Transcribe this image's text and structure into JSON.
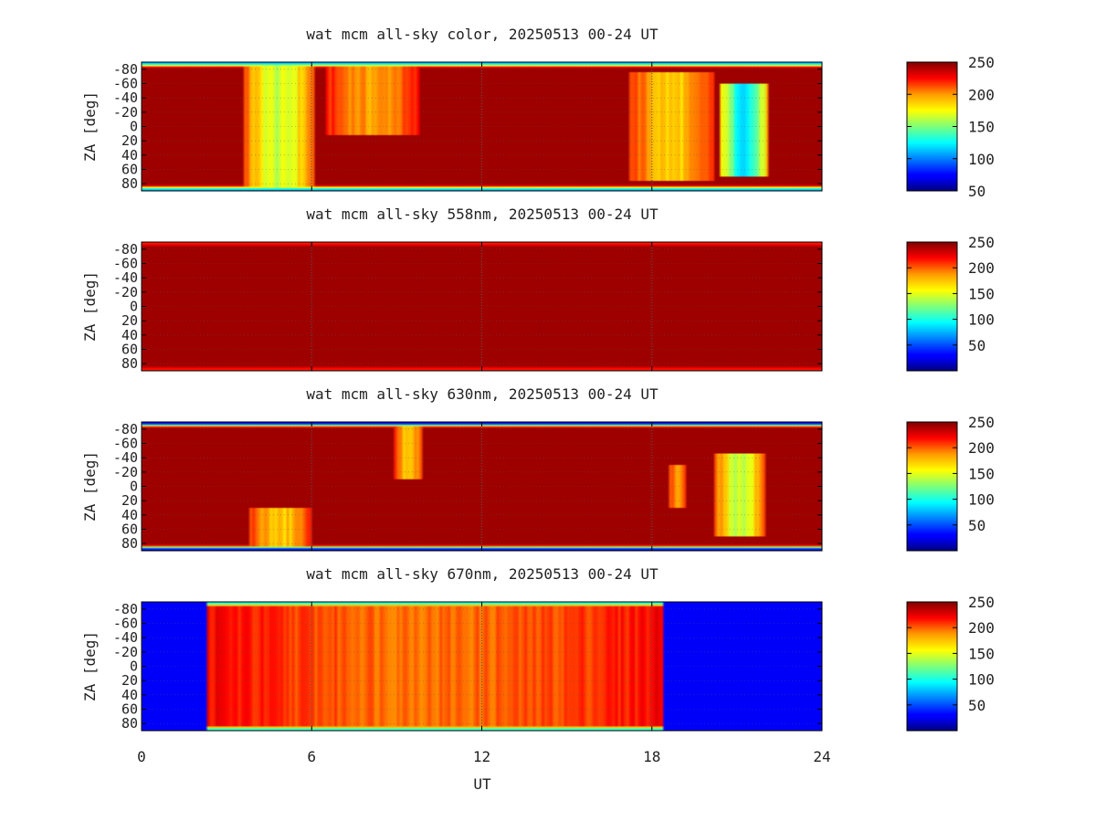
{
  "figure": {
    "xlabel": "UT",
    "x_ticks": [
      "0",
      "6",
      "12",
      "18",
      "24"
    ]
  },
  "chart_data": [
    {
      "type": "heatmap",
      "title": "wat mcm all-sky color, 20250513 00-24 UT",
      "xlabel": "UT",
      "ylabel": "ZA [deg]",
      "xlim": [
        0,
        24
      ],
      "ylim": [
        -90,
        90
      ],
      "x_ticks": [
        0,
        6,
        12,
        18,
        24
      ],
      "y_ticks": [
        -80,
        -60,
        -40,
        -20,
        0,
        20,
        40,
        60,
        80
      ],
      "y_tick_labels": [
        "-80",
        "-60",
        "-40",
        "-20",
        "0",
        "20",
        "40",
        "60",
        "80"
      ],
      "colorbar": {
        "range": [
          50,
          250
        ],
        "ticks": [
          "50",
          "100",
          "150",
          "200",
          "250"
        ],
        "colormap": "jet"
      },
      "grid": true,
      "features": {
        "edge_depth": 0.7,
        "dark_from": 0,
        "dark_to": 24,
        "moonlight": [
          {
            "t0": 3.6,
            "t1": 6.1,
            "zmin": -90,
            "zmax": 90,
            "level": 0.4
          },
          {
            "t0": 6.5,
            "t1": 9.8,
            "zmin": -90,
            "zmax": 12,
            "level": 0.25
          },
          {
            "t0": 17.2,
            "t1": 20.2,
            "zmin": -75,
            "zmax": 75,
            "level": 0.3
          },
          {
            "t0": 20.4,
            "t1": 22.1,
            "zmin": -60,
            "zmax": 70,
            "level": 0.6
          }
        ]
      }
    },
    {
      "type": "heatmap",
      "title": "wat mcm all-sky 558nm, 20250513 00-24 UT",
      "xlabel": "UT",
      "ylabel": "ZA [deg]",
      "xlim": [
        0,
        24
      ],
      "ylim": [
        -90,
        90
      ],
      "x_ticks": [
        0,
        6,
        12,
        18,
        24
      ],
      "y_ticks": [
        -80,
        -60,
        -40,
        -20,
        0,
        20,
        40,
        60,
        80
      ],
      "y_tick_labels": [
        "-80",
        "-60",
        "-40",
        "-20",
        "0",
        "20",
        "40",
        "60",
        "80"
      ],
      "colorbar": {
        "range": [
          0,
          250
        ],
        "ticks": [
          "50",
          "100",
          "150",
          "200",
          "250"
        ],
        "colormap": "jet"
      },
      "grid": true,
      "features": {
        "edge_depth": 0.15,
        "dark_from": 0,
        "dark_to": 24,
        "moonlight": []
      }
    },
    {
      "type": "heatmap",
      "title": "wat mcm all-sky 630nm, 20250513 00-24 UT",
      "xlabel": "UT",
      "ylabel": "ZA [deg]",
      "xlim": [
        0,
        24
      ],
      "ylim": [
        -90,
        90
      ],
      "x_ticks": [
        0,
        6,
        12,
        18,
        24
      ],
      "y_ticks": [
        -80,
        -60,
        -40,
        -20,
        0,
        20,
        40,
        60,
        80
      ],
      "y_tick_labels": [
        "-80",
        "-60",
        "-40",
        "-20",
        "0",
        "20",
        "40",
        "60",
        "80"
      ],
      "colorbar": {
        "range": [
          0,
          250
        ],
        "ticks": [
          "50",
          "100",
          "150",
          "200",
          "250"
        ],
        "colormap": "jet"
      },
      "grid": true,
      "features": {
        "edge_depth": 0.9,
        "dark_from": 0,
        "dark_to": 24,
        "moonlight": [
          {
            "t0": 3.8,
            "t1": 6.0,
            "zmin": 30,
            "zmax": 90,
            "level": 0.3
          },
          {
            "t0": 8.9,
            "t1": 9.9,
            "zmin": -90,
            "zmax": -10,
            "level": 0.3
          },
          {
            "t0": 18.6,
            "t1": 19.2,
            "zmin": -30,
            "zmax": 30,
            "level": 0.25
          },
          {
            "t0": 20.2,
            "t1": 22.0,
            "zmin": -45,
            "zmax": 70,
            "level": 0.4
          }
        ]
      }
    },
    {
      "type": "heatmap",
      "title": "wat mcm all-sky 670nm, 20250513 00-24 UT",
      "xlabel": "UT",
      "ylabel": "ZA [deg]",
      "xlim": [
        0,
        24
      ],
      "ylim": [
        -90,
        90
      ],
      "x_ticks": [
        0,
        6,
        12,
        18,
        24
      ],
      "y_ticks": [
        -80,
        -60,
        -40,
        -20,
        0,
        20,
        40,
        60,
        80
      ],
      "y_tick_labels": [
        "-80",
        "-60",
        "-40",
        "-20",
        "0",
        "20",
        "40",
        "60",
        "80"
      ],
      "colorbar": {
        "range": [
          0,
          250
        ],
        "ticks": [
          "50",
          "100",
          "150",
          "200",
          "250"
        ],
        "colormap": "jet"
      },
      "grid": true,
      "features": {
        "edge_depth": 0.6,
        "dark_from": 2.3,
        "dark_to": 18.4,
        "outside_level": 0.12,
        "moonlight": [
          {
            "t0": 2.3,
            "t1": 18.4,
            "zmin": -90,
            "zmax": 90,
            "level": 0.2
          }
        ]
      }
    }
  ],
  "colors": {
    "background": "#ffffff",
    "frame": "#000000",
    "grid": "#555555"
  }
}
